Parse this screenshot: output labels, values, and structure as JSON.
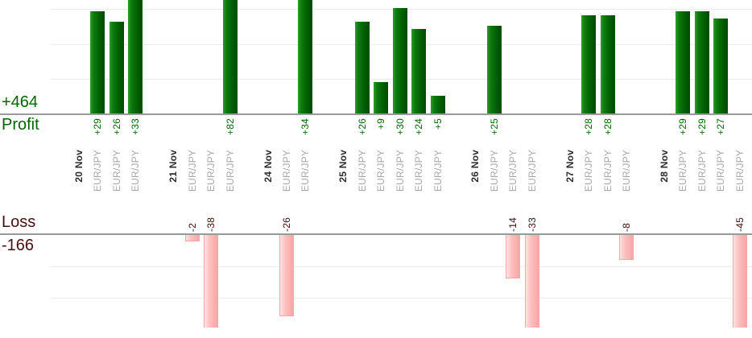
{
  "summary": {
    "profit_total_label": "+464",
    "profit_caption": "Profit",
    "loss_caption": "Loss",
    "loss_total_label": "-166"
  },
  "colors": {
    "profit_bar_green": "#0e7c0e",
    "profit_text_green": "#006600",
    "loss_bar_pink": "#f8a6a6",
    "loss_text_maroon": "#4a0e0e",
    "date_label": "#2d2d2d",
    "symbol_label": "#a8a8a8",
    "axis_line": "#999999",
    "gridline": "#ececec"
  },
  "chart_data": {
    "type": "bar",
    "title": "",
    "orientation": "profit bars grow up from upper axis, loss bars grow down from lower axis",
    "gridline_interval": 10,
    "profit_visible_range": [
      0,
      32
    ],
    "loss_visible_range": [
      0,
      -30
    ],
    "profit_total": 464,
    "loss_total": -166,
    "days": [
      {
        "date": "20 Nov",
        "trades": [
          {
            "symbol": "EUR/JPY",
            "value": 29,
            "label": "+29"
          },
          {
            "symbol": "EUR/JPY",
            "value": 26,
            "label": "+26"
          },
          {
            "symbol": "EUR/JPY",
            "value": 33,
            "label": "+33"
          }
        ]
      },
      {
        "date": "21 Nov",
        "trades": [
          {
            "symbol": "EUR/JPY",
            "value": -2,
            "label": "-2"
          },
          {
            "symbol": "EUR/JPY",
            "value": -38,
            "label": "-38"
          },
          {
            "symbol": "EUR/JPY",
            "value": 82,
            "label": "+82"
          }
        ]
      },
      {
        "date": "24 Nov",
        "trades": [
          {
            "symbol": "EUR/JPY",
            "value": -26,
            "label": "-26"
          },
          {
            "symbol": "EUR/JPY",
            "value": 34,
            "label": "+34"
          }
        ]
      },
      {
        "date": "25 Nov",
        "trades": [
          {
            "symbol": "EUR/JPY",
            "value": 26,
            "label": "+26"
          },
          {
            "symbol": "EUR/JPY",
            "value": 9,
            "label": "+9"
          },
          {
            "symbol": "EUR/JPY",
            "value": 30,
            "label": "+30"
          },
          {
            "symbol": "EUR/JPY",
            "value": 24,
            "label": "+24"
          },
          {
            "symbol": "EUR/JPY",
            "value": 5,
            "label": "+5"
          }
        ]
      },
      {
        "date": "26 Nov",
        "trades": [
          {
            "symbol": "EUR/JPY",
            "value": 25,
            "label": "+25"
          },
          {
            "symbol": "EUR/JPY",
            "value": -14,
            "label": "-14"
          },
          {
            "symbol": "EUR/JPY",
            "value": -33,
            "label": "-33"
          }
        ]
      },
      {
        "date": "27 Nov",
        "trades": [
          {
            "symbol": "EUR/JPY",
            "value": 28,
            "label": "+28"
          },
          {
            "symbol": "EUR/JPY",
            "value": 28,
            "label": "+28"
          },
          {
            "symbol": "EUR/JPY",
            "value": -8,
            "label": "-8"
          }
        ]
      },
      {
        "date": "28 Nov",
        "trades": [
          {
            "symbol": "EUR/JPY",
            "value": 29,
            "label": "+29"
          },
          {
            "symbol": "EUR/JPY",
            "value": 29,
            "label": "+29"
          },
          {
            "symbol": "EUR/JPY",
            "value": 27,
            "label": "+27"
          },
          {
            "symbol": "EUR/JPY",
            "value": -45,
            "label": "-45"
          }
        ]
      }
    ]
  }
}
